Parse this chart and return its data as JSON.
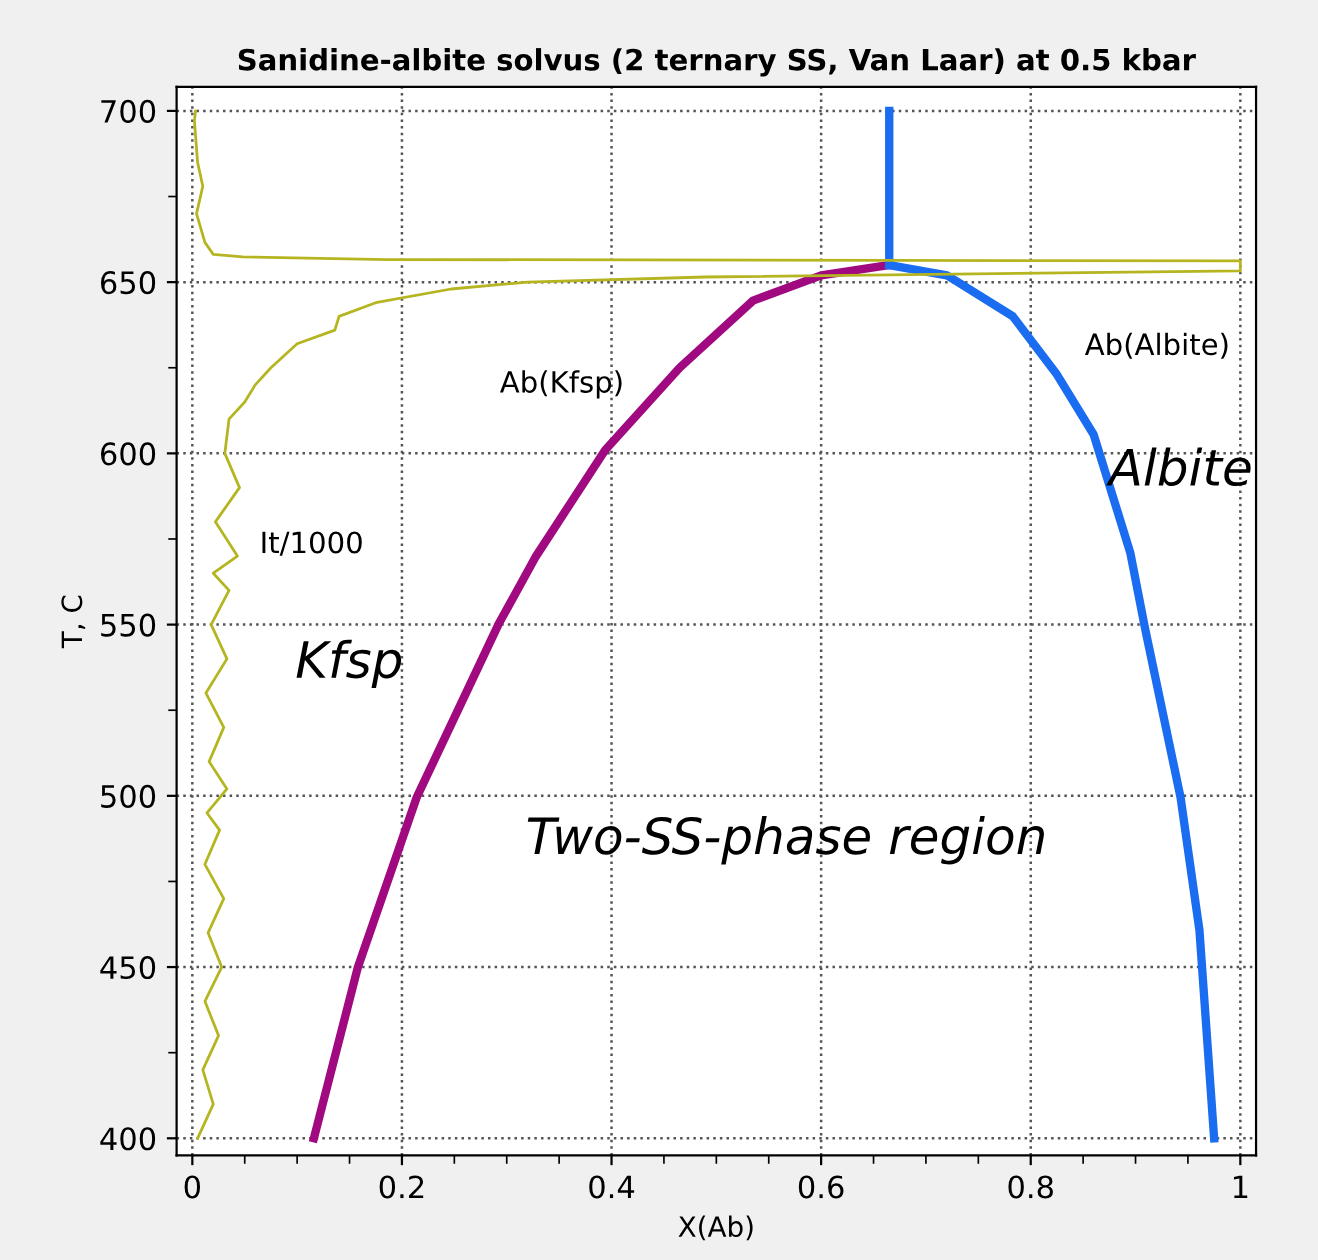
{
  "chart_data": {
    "type": "line",
    "title": "Sanidine-albite solvus (2 ternary SS, Van Laar) at 0.5 kbar",
    "xlabel": "X(Ab)",
    "ylabel": "T, C",
    "xlim": [
      -0.015,
      1.015
    ],
    "ylim": [
      395,
      707
    ],
    "xticks": [
      0,
      {
        "value": 0.05,
        "label": null
      },
      {
        "value": 0.1,
        "label": null
      },
      {
        "value": 0.15,
        "label": null
      },
      0.2,
      {
        "value": 0.25,
        "label": null
      },
      {
        "value": 0.3,
        "label": null
      },
      {
        "value": 0.35,
        "label": null
      },
      0.4,
      {
        "value": 0.45,
        "label": null
      },
      {
        "value": 0.5,
        "label": null
      },
      {
        "value": 0.55,
        "label": null
      },
      0.6,
      {
        "value": 0.65,
        "label": null
      },
      {
        "value": 0.7,
        "label": null
      },
      {
        "value": 0.75,
        "label": null
      },
      0.8,
      {
        "value": 0.85,
        "label": null
      },
      {
        "value": 0.9,
        "label": null
      },
      {
        "value": 0.95,
        "label": null
      },
      1
    ],
    "yticks": [
      400,
      {
        "value": 425,
        "label": null
      },
      450,
      {
        "value": 475,
        "label": null
      },
      500,
      {
        "value": 525,
        "label": null
      },
      550,
      {
        "value": 575,
        "label": null
      },
      600,
      {
        "value": 625,
        "label": null
      },
      650,
      {
        "value": 675,
        "label": null
      },
      700
    ],
    "grid": true,
    "marker": "none",
    "line_style": "solid",
    "series": [
      {
        "name": "Ab(Kfsp)",
        "color": "#a0097f",
        "x": [
          0.116,
          0.158,
          0.214,
          0.292,
          0.328,
          0.394,
          0.465,
          0.535,
          0.6,
          0.665
        ],
        "values": [
          400,
          450,
          499.5,
          550,
          570,
          601,
          625,
          644.6,
          652,
          655
        ]
      },
      {
        "name": "Ab(Albite)",
        "color": "#1a6cf0",
        "x": [
          0.665,
          0.72,
          0.783,
          0.825,
          0.86,
          0.895,
          0.909,
          0.943,
          0.961,
          0.975
        ],
        "values": [
          655,
          652,
          640,
          623,
          605.5,
          571,
          549,
          499.5,
          460.7,
          400
        ]
      },
      {
        "color": "#1a6cf0",
        "x": [
          0.665,
          0.665
        ],
        "values": [
          655,
          700
        ]
      },
      {
        "name": "It/1000",
        "color": "#b5b522",
        "x": [
          0.005,
          0.02,
          0.01,
          0.025,
          0.012,
          0.028,
          0.015,
          0.03,
          0.012,
          0.026,
          0.014,
          0.033,
          0.016,
          0.03,
          0.013,
          0.033,
          0.018,
          0.035,
          0.02,
          0.043,
          0.022,
          0.045,
          0.031,
          0.035,
          0.05,
          0.06,
          0.075,
          0.1,
          0.136,
          0.14,
          0.175,
          0.247,
          0.32,
          0.489,
          1,
          1,
          0.186,
          0.048,
          0.02,
          0.012,
          0.004,
          0.01,
          0.005,
          0.002,
          0.003
        ],
        "values": [
          400,
          410,
          420,
          430,
          440,
          450,
          460,
          470,
          480,
          490,
          495,
          502,
          510,
          520,
          530,
          540,
          550,
          560,
          565,
          570,
          580,
          590,
          600,
          610,
          615,
          620,
          625,
          632,
          636,
          640,
          644,
          648,
          650,
          651.5,
          653.3,
          656.2,
          656.6,
          657.4,
          658.1,
          661.6,
          670,
          678,
          685,
          697,
          700
        ]
      }
    ],
    "annotations": [
      "Kfsp",
      "Albite",
      "Two-SS-phase region"
    ]
  }
}
